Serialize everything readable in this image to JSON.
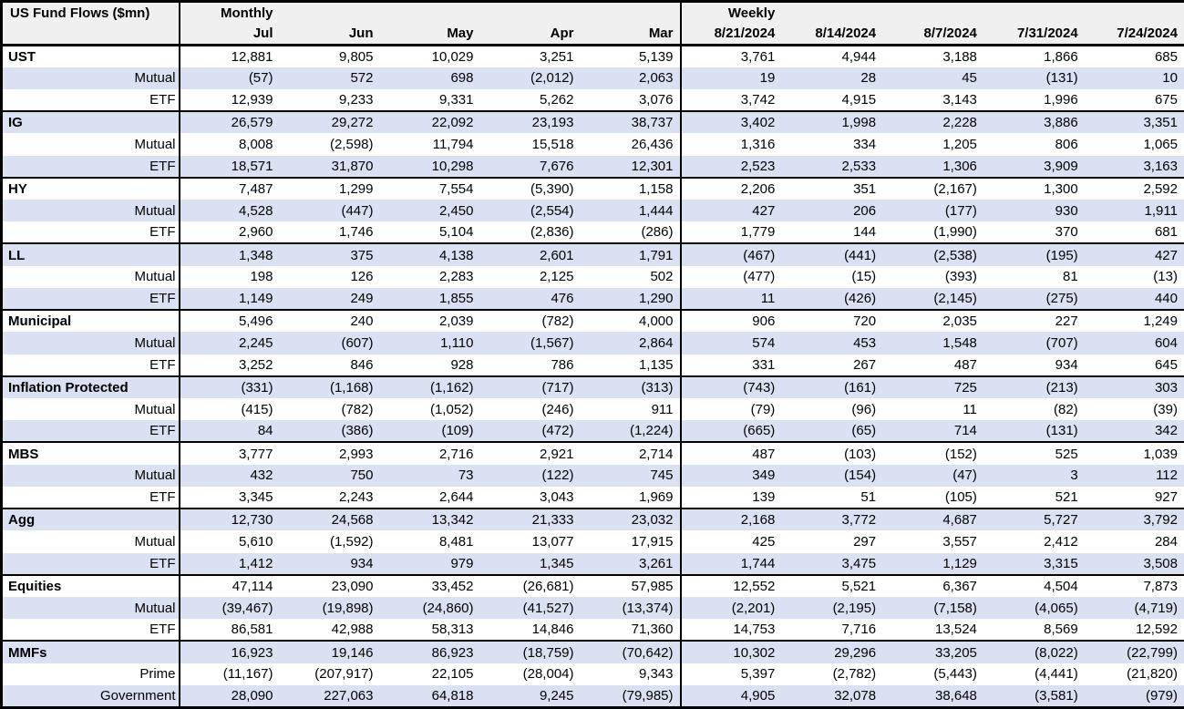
{
  "colors": {
    "band": "#D9E1F2",
    "header_bg": "#F0F0F0",
    "border": "#000000",
    "text": "#000000"
  },
  "chart_data": {
    "type": "table",
    "title": "US Fund Flows ($mn)",
    "monthly_label": "Monthly",
    "weekly_label": "Weekly",
    "monthly_columns": [
      "Jul",
      "Jun",
      "May",
      "Apr",
      "Mar"
    ],
    "weekly_columns": [
      "8/21/2024",
      "8/14/2024",
      "8/7/2024",
      "7/31/2024",
      "7/24/2024"
    ],
    "rows": [
      {
        "label": "UST",
        "type": "category",
        "monthly": [
          "12,881",
          "9,805",
          "10,029",
          "3,251",
          "5,139"
        ],
        "weekly": [
          "3,761",
          "4,944",
          "3,188",
          "1,866",
          "685"
        ]
      },
      {
        "label": "Mutual",
        "type": "sub",
        "monthly": [
          "(57)",
          "572",
          "698",
          "(2,012)",
          "2,063"
        ],
        "weekly": [
          "19",
          "28",
          "45",
          "(131)",
          "10"
        ]
      },
      {
        "label": "ETF",
        "type": "sub",
        "monthly": [
          "12,939",
          "9,233",
          "9,331",
          "5,262",
          "3,076"
        ],
        "weekly": [
          "3,742",
          "4,915",
          "3,143",
          "1,996",
          "675"
        ]
      },
      {
        "label": "IG",
        "type": "category",
        "monthly": [
          "26,579",
          "29,272",
          "22,092",
          "23,193",
          "38,737"
        ],
        "weekly": [
          "3,402",
          "1,998",
          "2,228",
          "3,886",
          "3,351"
        ]
      },
      {
        "label": "Mutual",
        "type": "sub",
        "monthly": [
          "8,008",
          "(2,598)",
          "11,794",
          "15,518",
          "26,436"
        ],
        "weekly": [
          "1,316",
          "334",
          "1,205",
          "806",
          "1,065"
        ]
      },
      {
        "label": "ETF",
        "type": "sub",
        "monthly": [
          "18,571",
          "31,870",
          "10,298",
          "7,676",
          "12,301"
        ],
        "weekly": [
          "2,523",
          "2,533",
          "1,306",
          "3,909",
          "3,163"
        ]
      },
      {
        "label": "HY",
        "type": "category",
        "monthly": [
          "7,487",
          "1,299",
          "7,554",
          "(5,390)",
          "1,158"
        ],
        "weekly": [
          "2,206",
          "351",
          "(2,167)",
          "1,300",
          "2,592"
        ]
      },
      {
        "label": "Mutual",
        "type": "sub",
        "monthly": [
          "4,528",
          "(447)",
          "2,450",
          "(2,554)",
          "1,444"
        ],
        "weekly": [
          "427",
          "206",
          "(177)",
          "930",
          "1,911"
        ]
      },
      {
        "label": "ETF",
        "type": "sub",
        "monthly": [
          "2,960",
          "1,746",
          "5,104",
          "(2,836)",
          "(286)"
        ],
        "weekly": [
          "1,779",
          "144",
          "(1,990)",
          "370",
          "681"
        ]
      },
      {
        "label": "LL",
        "type": "category",
        "monthly": [
          "1,348",
          "375",
          "4,138",
          "2,601",
          "1,791"
        ],
        "weekly": [
          "(467)",
          "(441)",
          "(2,538)",
          "(195)",
          "427"
        ]
      },
      {
        "label": "Mutual",
        "type": "sub",
        "monthly": [
          "198",
          "126",
          "2,283",
          "2,125",
          "502"
        ],
        "weekly": [
          "(477)",
          "(15)",
          "(393)",
          "81",
          "(13)"
        ]
      },
      {
        "label": "ETF",
        "type": "sub",
        "monthly": [
          "1,149",
          "249",
          "1,855",
          "476",
          "1,290"
        ],
        "weekly": [
          "11",
          "(426)",
          "(2,145)",
          "(275)",
          "440"
        ]
      },
      {
        "label": "Municipal",
        "type": "category",
        "monthly": [
          "5,496",
          "240",
          "2,039",
          "(782)",
          "4,000"
        ],
        "weekly": [
          "906",
          "720",
          "2,035",
          "227",
          "1,249"
        ]
      },
      {
        "label": "Mutual",
        "type": "sub",
        "monthly": [
          "2,245",
          "(607)",
          "1,110",
          "(1,567)",
          "2,864"
        ],
        "weekly": [
          "574",
          "453",
          "1,548",
          "(707)",
          "604"
        ]
      },
      {
        "label": "ETF",
        "type": "sub",
        "monthly": [
          "3,252",
          "846",
          "928",
          "786",
          "1,135"
        ],
        "weekly": [
          "331",
          "267",
          "487",
          "934",
          "645"
        ]
      },
      {
        "label": "Inflation Protected",
        "type": "category",
        "monthly": [
          "(331)",
          "(1,168)",
          "(1,162)",
          "(717)",
          "(313)"
        ],
        "weekly": [
          "(743)",
          "(161)",
          "725",
          "(213)",
          "303"
        ]
      },
      {
        "label": "Mutual",
        "type": "sub",
        "monthly": [
          "(415)",
          "(782)",
          "(1,052)",
          "(246)",
          "911"
        ],
        "weekly": [
          "(79)",
          "(96)",
          "11",
          "(82)",
          "(39)"
        ]
      },
      {
        "label": "ETF",
        "type": "sub",
        "monthly": [
          "84",
          "(386)",
          "(109)",
          "(472)",
          "(1,224)"
        ],
        "weekly": [
          "(665)",
          "(65)",
          "714",
          "(131)",
          "342"
        ]
      },
      {
        "label": "MBS",
        "type": "category",
        "monthly": [
          "3,777",
          "2,993",
          "2,716",
          "2,921",
          "2,714"
        ],
        "weekly": [
          "487",
          "(103)",
          "(152)",
          "525",
          "1,039"
        ]
      },
      {
        "label": "Mutual",
        "type": "sub",
        "monthly": [
          "432",
          "750",
          "73",
          "(122)",
          "745"
        ],
        "weekly": [
          "349",
          "(154)",
          "(47)",
          "3",
          "112"
        ]
      },
      {
        "label": "ETF",
        "type": "sub",
        "monthly": [
          "3,345",
          "2,243",
          "2,644",
          "3,043",
          "1,969"
        ],
        "weekly": [
          "139",
          "51",
          "(105)",
          "521",
          "927"
        ]
      },
      {
        "label": "Agg",
        "type": "category",
        "monthly": [
          "12,730",
          "24,568",
          "13,342",
          "21,333",
          "23,032"
        ],
        "weekly": [
          "2,168",
          "3,772",
          "4,687",
          "5,727",
          "3,792"
        ]
      },
      {
        "label": "Mutual",
        "type": "sub",
        "monthly": [
          "5,610",
          "(1,592)",
          "8,481",
          "13,077",
          "17,915"
        ],
        "weekly": [
          "425",
          "297",
          "3,557",
          "2,412",
          "284"
        ]
      },
      {
        "label": "ETF",
        "type": "sub",
        "monthly": [
          "1,412",
          "934",
          "979",
          "1,345",
          "3,261"
        ],
        "weekly": [
          "1,744",
          "3,475",
          "1,129",
          "3,315",
          "3,508"
        ]
      },
      {
        "label": "Equities",
        "type": "category",
        "monthly": [
          "47,114",
          "23,090",
          "33,452",
          "(26,681)",
          "57,985"
        ],
        "weekly": [
          "12,552",
          "5,521",
          "6,367",
          "4,504",
          "7,873"
        ]
      },
      {
        "label": "Mutual",
        "type": "sub",
        "monthly": [
          "(39,467)",
          "(19,898)",
          "(24,860)",
          "(41,527)",
          "(13,374)"
        ],
        "weekly": [
          "(2,201)",
          "(2,195)",
          "(7,158)",
          "(4,065)",
          "(4,719)"
        ]
      },
      {
        "label": "ETF",
        "type": "sub",
        "monthly": [
          "86,581",
          "42,988",
          "58,313",
          "14,846",
          "71,360"
        ],
        "weekly": [
          "14,753",
          "7,716",
          "13,524",
          "8,569",
          "12,592"
        ]
      },
      {
        "label": "MMFs",
        "type": "category",
        "monthly": [
          "16,923",
          "19,146",
          "86,923",
          "(18,759)",
          "(70,642)"
        ],
        "weekly": [
          "10,302",
          "29,296",
          "33,205",
          "(8,022)",
          "(22,799)"
        ]
      },
      {
        "label": "Prime",
        "type": "sub",
        "monthly": [
          "(11,167)",
          "(207,917)",
          "22,105",
          "(28,004)",
          "9,343"
        ],
        "weekly": [
          "5,397",
          "(2,782)",
          "(5,443)",
          "(4,441)",
          "(21,820)"
        ]
      },
      {
        "label": "Government",
        "type": "sub",
        "monthly": [
          "28,090",
          "227,063",
          "64,818",
          "9,245",
          "(79,985)"
        ],
        "weekly": [
          "4,905",
          "32,078",
          "38,648",
          "(3,581)",
          "(979)"
        ]
      }
    ]
  }
}
